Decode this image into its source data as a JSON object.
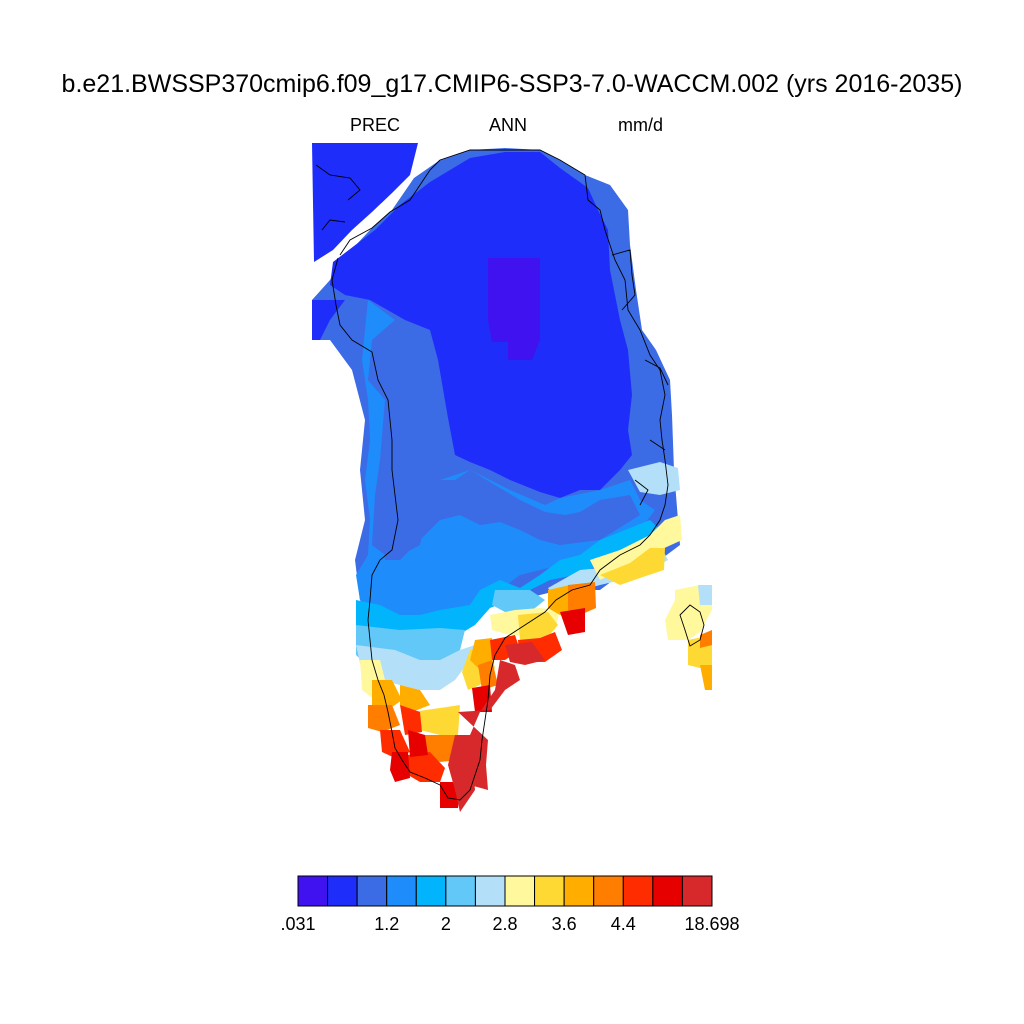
{
  "title": "b.e21.BWSSP370cmip6.f09_g17.CMIP6-SSP3-7.0-WACCM.002 (yrs 2016-2035)",
  "subtitle": {
    "variable": "PREC",
    "season": "ANN",
    "units": "mm/d"
  },
  "colorbar": {
    "colors": [
      "#3f12ef",
      "#1f2dfa",
      "#3c6be6",
      "#1e8cfb",
      "#02b4fc",
      "#62c8f7",
      "#b3e0f8",
      "#fff89d",
      "#ffd933",
      "#ffae00",
      "#ff7e00",
      "#ff2c00",
      "#e60000",
      "#d7292b"
    ],
    "tick_labels": [
      ".031",
      "1.2",
      "2",
      "2.8",
      "3.6",
      "4.4",
      "18.698"
    ],
    "tick_edge_index": [
      0,
      3,
      5,
      7,
      9,
      11,
      14
    ]
  },
  "map": {
    "region": "Greenland",
    "grid_colors_legend": "0 #3f12ef, 1 #1f2dfa, 2 #3c6be6, 3 #1e8cfb, 4 #02b4fc, 5 #62c8f7, 6 #b3e0f8, 7 #fff89d, 8 #ffd933, 9 #ffae00, 10 #ff7e00, 11 #ff2c00, 12 #e60000, 13 #d7292b"
  }
}
